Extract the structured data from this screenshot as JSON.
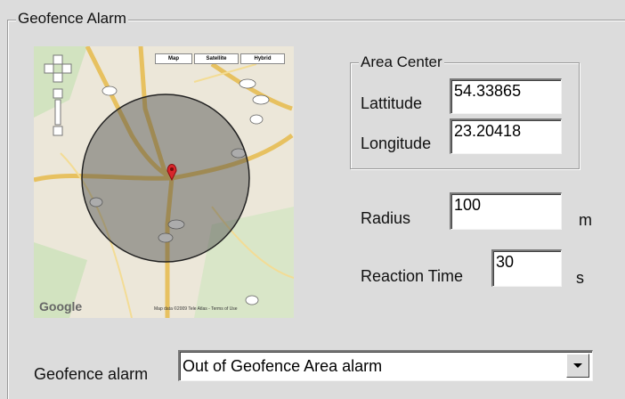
{
  "group": {
    "title": "Geofence Alarm"
  },
  "map": {
    "buttons": [
      "Map",
      "Satellite",
      "Hybrid"
    ],
    "logo": "Google",
    "attribution": "Map data ©2009 Tele Atlas - Terms of Use"
  },
  "area_center": {
    "title": "Area Center",
    "latitude": {
      "label": "Lattitude",
      "value": "54.33865"
    },
    "longitude": {
      "label": "Longitude",
      "value": "23.20418"
    }
  },
  "radius": {
    "label": "Radius",
    "value": "100",
    "unit": "m"
  },
  "reaction_time": {
    "label": "Reaction Time",
    "value": "30",
    "unit": "s"
  },
  "alarm": {
    "label": "Geofence alarm",
    "value": "Out of Geofence Area alarm"
  }
}
